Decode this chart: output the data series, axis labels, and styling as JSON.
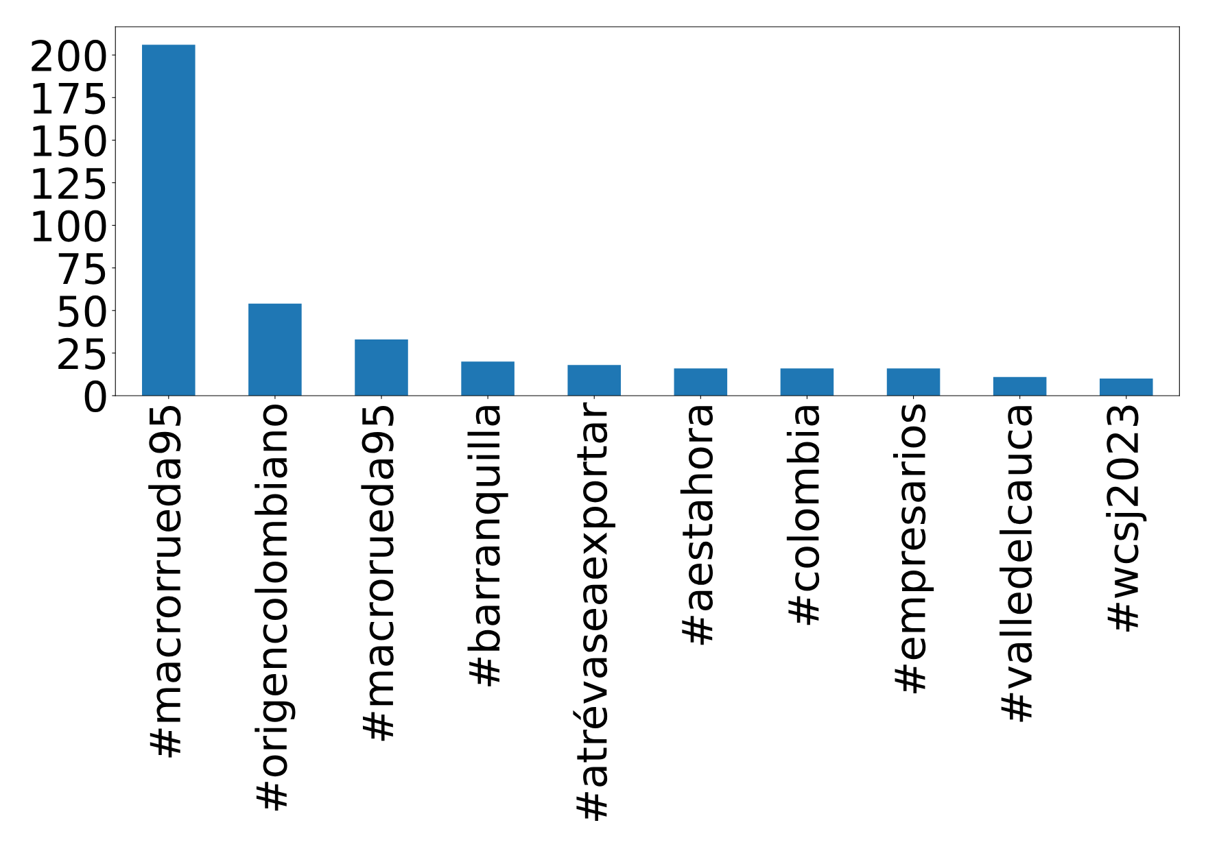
{
  "chart_data": {
    "type": "bar",
    "categories": [
      "#macrorrueda95",
      "#origencolombiano",
      "#macrorueda95",
      "#barranquilla",
      "#atrévaseaexportar",
      "#aestahora",
      "#colombia",
      "#empresarios",
      "#valledelcauca",
      "#wcsj2023"
    ],
    "values": [
      206,
      54,
      33,
      20,
      18,
      16,
      16,
      16,
      11,
      10
    ],
    "color": "#1f77b4",
    "ylim": [
      0,
      216.6
    ],
    "yticks": [
      0,
      25,
      50,
      75,
      100,
      125,
      150,
      175,
      200
    ],
    "grid": false
  }
}
